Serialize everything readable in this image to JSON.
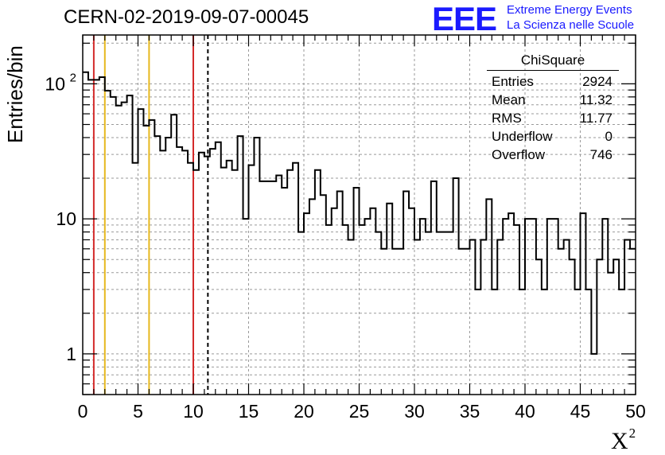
{
  "chart_data": {
    "type": "histogram",
    "title": "CERN-02-2019-09-07-00045",
    "xlabel": "X",
    "xlabel_sup": "2",
    "ylabel": "Entries/bin",
    "yscale": "log",
    "xlim": [
      0,
      50
    ],
    "ylim": [
      0.5,
      230
    ],
    "bin_width": 0.5,
    "x_ticks": [
      "0",
      "5",
      "10",
      "15",
      "20",
      "25",
      "30",
      "35",
      "40",
      "45",
      "50"
    ],
    "y_ticks": [
      {
        "value": 1,
        "label": "1"
      },
      {
        "value": 10,
        "label": "10"
      },
      {
        "value": 100,
        "label": "10",
        "sup": "2"
      }
    ],
    "grid": true,
    "bin_counts": [
      122,
      107,
      107,
      112,
      89,
      80,
      69,
      73,
      82,
      26,
      65,
      49,
      54,
      41,
      32,
      40,
      59,
      34,
      32,
      26,
      23,
      31,
      29,
      33,
      37,
      24,
      27,
      23,
      41,
      10,
      25,
      40,
      19,
      19,
      19,
      21,
      17,
      23,
      26,
      8,
      11,
      14,
      23,
      15,
      9,
      12,
      16,
      9,
      7,
      17,
      9,
      10,
      12,
      8,
      6,
      13,
      6,
      6,
      16,
      12,
      7,
      10,
      8,
      19,
      8,
      8,
      8,
      20,
      6,
      6,
      7,
      3,
      7,
      14,
      3,
      7,
      10,
      11,
      9,
      3,
      10,
      10,
      5,
      3,
      10,
      10,
      6,
      7,
      5,
      3,
      11,
      3,
      1,
      5,
      10,
      4,
      5,
      3,
      7,
      6
    ],
    "overflow_bins_note": "",
    "vertical_lines": [
      {
        "x": 1,
        "color": "#d42a2a",
        "style": "solid"
      },
      {
        "x": 2,
        "color": "#e6b81e",
        "style": "solid"
      },
      {
        "x": 6,
        "color": "#e6b81e",
        "style": "solid"
      },
      {
        "x": 10,
        "color": "#d42a2a",
        "style": "solid"
      },
      {
        "x": 11.32,
        "color": "#000000",
        "style": "dashed"
      }
    ],
    "stats_box": {
      "name": "ChiSquare",
      "entries": [
        {
          "label": "Entries",
          "value": "2924"
        },
        {
          "label": "Mean",
          "value": "11.32"
        },
        {
          "label": "RMS",
          "value": "11.77"
        },
        {
          "label": "Underflow",
          "value": "0"
        },
        {
          "label": "Overflow",
          "value": "746"
        }
      ]
    }
  },
  "logo": {
    "text": "EEE",
    "line1": "Extreme Energy Events",
    "line2": "La Scienza nelle Scuole",
    "color": "#1a1aff"
  }
}
